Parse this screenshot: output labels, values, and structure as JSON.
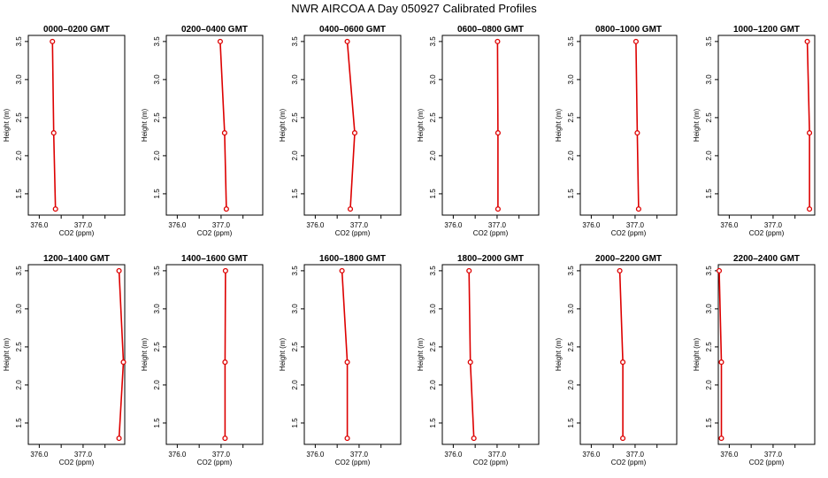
{
  "title": "NWR AIRCOA A  Day 050927  Calibrated Profiles",
  "colors": {
    "series": "#dd0000",
    "axis": "#000000",
    "background": "#ffffff"
  },
  "chart_data": [
    {
      "type": "line",
      "title": "0000–0200 GMT",
      "xlabel": "CO2 (ppm)",
      "ylabel": "Height (m)",
      "xlim": [
        375.75,
        377.95
      ],
      "ylim": [
        1.22,
        3.58
      ],
      "xticks": [
        376.0,
        377.0
      ],
      "xtick_labels": [
        "376.0",
        "377.0"
      ],
      "xminor": [
        376.5,
        377.5
      ],
      "yticks": [
        1.5,
        2.0,
        2.5,
        3.0,
        3.5
      ],
      "ytick_labels": [
        "1.5",
        "2.0",
        "2.5",
        "3.0",
        "3.5"
      ],
      "x": [
        376.3,
        376.33,
        376.37
      ],
      "y": [
        3.5,
        2.3,
        1.3
      ]
    },
    {
      "type": "line",
      "title": "0200–0400 GMT",
      "xlabel": "CO2 (ppm)",
      "ylabel": "Height (m)",
      "xlim": [
        375.75,
        377.95
      ],
      "ylim": [
        1.22,
        3.58
      ],
      "xticks": [
        376.0,
        377.0
      ],
      "xtick_labels": [
        "376.0",
        "377.0"
      ],
      "xminor": [
        376.5,
        377.5
      ],
      "yticks": [
        1.5,
        2.0,
        2.5,
        3.0,
        3.5
      ],
      "ytick_labels": [
        "1.5",
        "2.0",
        "2.5",
        "3.0",
        "3.5"
      ],
      "x": [
        376.98,
        377.08,
        377.12
      ],
      "y": [
        3.5,
        2.3,
        1.3
      ]
    },
    {
      "type": "line",
      "title": "0400–0600 GMT",
      "xlabel": "CO2 (ppm)",
      "ylabel": "Height (m)",
      "xlim": [
        375.75,
        377.95
      ],
      "ylim": [
        1.22,
        3.58
      ],
      "xticks": [
        376.0,
        377.0
      ],
      "xtick_labels": [
        "376.0",
        "377.0"
      ],
      "xminor": [
        376.5,
        377.5
      ],
      "yticks": [
        1.5,
        2.0,
        2.5,
        3.0,
        3.5
      ],
      "ytick_labels": [
        "1.5",
        "2.0",
        "2.5",
        "3.0",
        "3.5"
      ],
      "x": [
        376.73,
        376.9,
        376.8
      ],
      "y": [
        3.5,
        2.3,
        1.3
      ]
    },
    {
      "type": "line",
      "title": "0600–0800 GMT",
      "xlabel": "CO2 (ppm)",
      "ylabel": "Height (m)",
      "xlim": [
        375.75,
        377.95
      ],
      "ylim": [
        1.22,
        3.58
      ],
      "xticks": [
        376.0,
        377.0
      ],
      "xtick_labels": [
        "376.0",
        "377.0"
      ],
      "xminor": [
        376.5,
        377.5
      ],
      "yticks": [
        1.5,
        2.0,
        2.5,
        3.0,
        3.5
      ],
      "ytick_labels": [
        "1.5",
        "2.0",
        "2.5",
        "3.0",
        "3.5"
      ],
      "x": [
        377.01,
        377.02,
        377.02
      ],
      "y": [
        3.5,
        2.3,
        1.3
      ]
    },
    {
      "type": "line",
      "title": "0800–1000 GMT",
      "xlabel": "CO2 (ppm)",
      "ylabel": "Height (m)",
      "xlim": [
        375.75,
        377.95
      ],
      "ylim": [
        1.22,
        3.58
      ],
      "xticks": [
        376.0,
        377.0
      ],
      "xtick_labels": [
        "376.0",
        "377.0"
      ],
      "xminor": [
        376.5,
        377.5
      ],
      "yticks": [
        1.5,
        2.0,
        2.5,
        3.0,
        3.5
      ],
      "ytick_labels": [
        "1.5",
        "2.0",
        "2.5",
        "3.0",
        "3.5"
      ],
      "x": [
        377.02,
        377.05,
        377.08
      ],
      "y": [
        3.5,
        2.3,
        1.3
      ]
    },
    {
      "type": "line",
      "title": "1000–1200 GMT",
      "xlabel": "CO2 (ppm)",
      "ylabel": "Height (m)",
      "xlim": [
        375.75,
        377.95
      ],
      "ylim": [
        1.22,
        3.58
      ],
      "xticks": [
        376.0,
        377.0
      ],
      "xtick_labels": [
        "376.0",
        "377.0"
      ],
      "xminor": [
        376.5,
        377.5
      ],
      "yticks": [
        1.5,
        2.0,
        2.5,
        3.0,
        3.5
      ],
      "ytick_labels": [
        "1.5",
        "2.0",
        "2.5",
        "3.0",
        "3.5"
      ],
      "x": [
        377.78,
        377.83,
        377.83
      ],
      "y": [
        3.5,
        2.3,
        1.3
      ]
    },
    {
      "type": "line",
      "title": "1200–1400 GMT",
      "xlabel": "CO2 (ppm)",
      "ylabel": "Height (m)",
      "xlim": [
        375.75,
        377.95
      ],
      "ylim": [
        1.22,
        3.58
      ],
      "xticks": [
        376.0,
        377.0
      ],
      "xtick_labels": [
        "376.0",
        "377.0"
      ],
      "xminor": [
        376.5,
        377.5
      ],
      "yticks": [
        1.5,
        2.0,
        2.5,
        3.0,
        3.5
      ],
      "ytick_labels": [
        "1.5",
        "2.0",
        "2.5",
        "3.0",
        "3.5"
      ],
      "x": [
        377.82,
        377.92,
        377.82
      ],
      "y": [
        3.5,
        2.3,
        1.3
      ]
    },
    {
      "type": "line",
      "title": "1400–1600 GMT",
      "xlabel": "CO2 (ppm)",
      "ylabel": "Height (m)",
      "xlim": [
        375.75,
        377.95
      ],
      "ylim": [
        1.22,
        3.58
      ],
      "xticks": [
        376.0,
        377.0
      ],
      "xtick_labels": [
        "376.0",
        "377.0"
      ],
      "xminor": [
        376.5,
        377.5
      ],
      "yticks": [
        1.5,
        2.0,
        2.5,
        3.0,
        3.5
      ],
      "ytick_labels": [
        "1.5",
        "2.0",
        "2.5",
        "3.0",
        "3.5"
      ],
      "x": [
        377.1,
        377.09,
        377.09
      ],
      "y": [
        3.5,
        2.3,
        1.3
      ]
    },
    {
      "type": "line",
      "title": "1600–1800 GMT",
      "xlabel": "CO2 (ppm)",
      "ylabel": "Height (m)",
      "xlim": [
        375.75,
        377.95
      ],
      "ylim": [
        1.22,
        3.58
      ],
      "xticks": [
        376.0,
        377.0
      ],
      "xtick_labels": [
        "376.0",
        "377.0"
      ],
      "xminor": [
        376.5,
        377.5
      ],
      "yticks": [
        1.5,
        2.0,
        2.5,
        3.0,
        3.5
      ],
      "ytick_labels": [
        "1.5",
        "2.0",
        "2.5",
        "3.0",
        "3.5"
      ],
      "x": [
        376.61,
        376.73,
        376.73
      ],
      "y": [
        3.5,
        2.3,
        1.3
      ]
    },
    {
      "type": "line",
      "title": "1800–2000 GMT",
      "xlabel": "CO2 (ppm)",
      "ylabel": "Height (m)",
      "xlim": [
        375.75,
        377.95
      ],
      "ylim": [
        1.22,
        3.58
      ],
      "xticks": [
        376.0,
        377.0
      ],
      "xtick_labels": [
        "376.0",
        "377.0"
      ],
      "xminor": [
        376.5,
        377.5
      ],
      "yticks": [
        1.5,
        2.0,
        2.5,
        3.0,
        3.5
      ],
      "ytick_labels": [
        "1.5",
        "2.0",
        "2.5",
        "3.0",
        "3.5"
      ],
      "x": [
        376.36,
        376.39,
        376.47
      ],
      "y": [
        3.5,
        2.3,
        1.3
      ]
    },
    {
      "type": "line",
      "title": "2000–2200 GMT",
      "xlabel": "CO2 (ppm)",
      "ylabel": "Height (m)",
      "xlim": [
        375.75,
        377.95
      ],
      "ylim": [
        1.22,
        3.58
      ],
      "xticks": [
        376.0,
        377.0
      ],
      "xtick_labels": [
        "376.0",
        "377.0"
      ],
      "xminor": [
        376.5,
        377.5
      ],
      "yticks": [
        1.5,
        2.0,
        2.5,
        3.0,
        3.5
      ],
      "ytick_labels": [
        "1.5",
        "2.0",
        "2.5",
        "3.0",
        "3.5"
      ],
      "x": [
        376.65,
        376.72,
        376.72
      ],
      "y": [
        3.5,
        2.3,
        1.3
      ]
    },
    {
      "type": "line",
      "title": "2200–2400 GMT",
      "xlabel": "CO2 (ppm)",
      "ylabel": "Height (m)",
      "xlim": [
        375.75,
        377.95
      ],
      "ylim": [
        1.22,
        3.58
      ],
      "xticks": [
        376.0,
        377.0
      ],
      "xtick_labels": [
        "376.0",
        "377.0"
      ],
      "xminor": [
        376.5,
        377.5
      ],
      "yticks": [
        1.5,
        2.0,
        2.5,
        3.0,
        3.5
      ],
      "ytick_labels": [
        "1.5",
        "2.0",
        "2.5",
        "3.0",
        "3.5"
      ],
      "x": [
        375.77,
        375.82,
        375.82
      ],
      "y": [
        3.5,
        2.3,
        1.3
      ]
    }
  ]
}
